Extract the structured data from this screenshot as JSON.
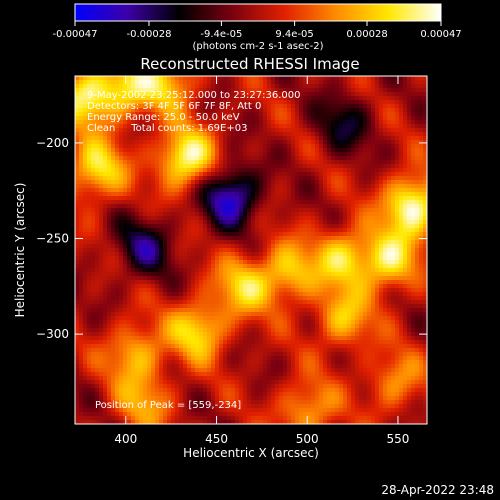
{
  "chart_data": {
    "type": "heatmap",
    "title": "Reconstructed RHESSI Image",
    "xlabel": "Heliocentric X (arcsec)",
    "ylabel": "Heliocentric Y (arcsec)",
    "xlim": [
      372,
      566
    ],
    "ylim": [
      -347,
      -165
    ],
    "xticks": [
      400,
      450,
      500,
      550
    ],
    "yticks": [
      -200,
      -250,
      -300
    ],
    "colorbar": {
      "min": -0.00047,
      "max": 0.00047,
      "ticks": [
        -0.00047,
        -0.00028,
        -9.4e-05,
        9.4e-05,
        0.00028,
        0.00047
      ],
      "tick_labels": [
        "-0.00047",
        "-0.00028",
        "-9.4e-05",
        "9.4e-05",
        "0.00028",
        "0.00047"
      ],
      "unit_label": "(photons cm-2 s-1 asec-2)",
      "colors": [
        "#0000ff",
        "#3c00a8",
        "#000000",
        "#7a0010",
        "#e02000",
        "#ff8c00",
        "#ffe800",
        "#ffffff"
      ]
    },
    "annotations": [
      "9-May-2002 23:25:12.000 to 23:27:36.000",
      "Detectors: 3F 4F 5F 6F 7F 8F, Att 0",
      "Energy Range: 25.0 - 50.0 keV",
      "Clean     Total counts: 1.69E+03"
    ],
    "peak": {
      "label": "Position of Peak = [559,-234]",
      "x": 559,
      "y": -234
    },
    "sources": [
      {
        "x": 378,
        "y": -176,
        "value": 0.00038
      },
      {
        "x": 400,
        "y": -171,
        "value": 0.0003
      },
      {
        "x": 423,
        "y": -168,
        "value": 0.00028
      },
      {
        "x": 384,
        "y": -214,
        "value": 0.00036
      },
      {
        "x": 433,
        "y": -208,
        "value": 0.00044
      },
      {
        "x": 558,
        "y": -233,
        "value": 0.00047
      },
      {
        "x": 545,
        "y": -262,
        "value": 0.00036
      },
      {
        "x": 520,
        "y": -260,
        "value": 0.00032
      },
      {
        "x": 490,
        "y": -268,
        "value": 0.0003
      },
      {
        "x": 465,
        "y": -275,
        "value": 0.0003
      },
      {
        "x": 520,
        "y": -292,
        "value": 0.00028
      },
      {
        "x": 440,
        "y": -298,
        "value": 0.00034
      },
      {
        "x": 405,
        "y": -310,
        "value": 0.00028
      },
      {
        "x": 410,
        "y": -336,
        "value": 0.00022
      },
      {
        "x": 500,
        "y": -340,
        "value": 0.00026
      },
      {
        "x": 548,
        "y": -325,
        "value": 0.00022
      },
      {
        "x": 458,
        "y": -228,
        "value": -0.0004
      },
      {
        "x": 410,
        "y": -255,
        "value": -0.00026
      },
      {
        "x": 520,
        "y": -190,
        "value": -0.0002
      }
    ]
  },
  "footer": {
    "timestamp": "28-Apr-2022 23:48"
  }
}
